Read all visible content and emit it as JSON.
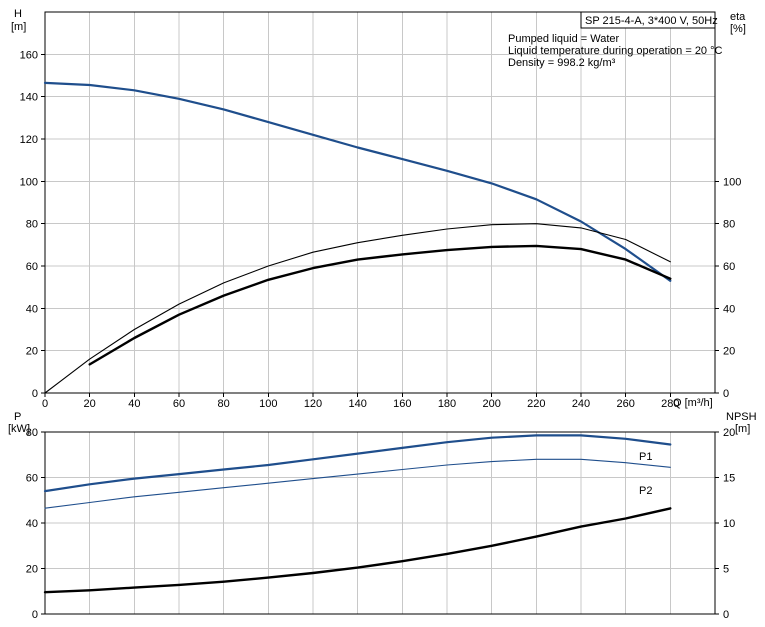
{
  "chart_data": [
    {
      "type": "line",
      "panel": "upper",
      "xlabel": "Q [m³/h]",
      "ylabel_line1": "H",
      "ylabel_line2": "[m]",
      "y2label_line1": "eta",
      "y2label_line2": "[%]",
      "xlim": [
        0,
        300
      ],
      "ylim": [
        0,
        180
      ],
      "y2lim": [
        0,
        180
      ],
      "x_ticks": [
        0,
        20,
        40,
        60,
        80,
        100,
        120,
        140,
        160,
        180,
        200,
        220,
        240,
        260,
        280
      ],
      "y_ticks": [
        0,
        20,
        40,
        60,
        80,
        100,
        120,
        140,
        160
      ],
      "y2_ticks": [
        0,
        20,
        40,
        60,
        80,
        100
      ],
      "grid": true,
      "title_box": "SP 215-4-A, 3*400 V, 50Hz",
      "info_lines": [
        "Pumped liquid = Water",
        "Liquid temperature during operation = 20 °C",
        "Density = 998.2 kg/m³"
      ],
      "series": [
        {
          "color": "#1f4e8c",
          "width": 2.2,
          "axis": "left",
          "x": [
            0,
            20,
            40,
            60,
            80,
            100,
            120,
            140,
            160,
            180,
            200,
            220,
            240,
            260,
            280
          ],
          "y": [
            146.5,
            145.5,
            143,
            139,
            134,
            128,
            122,
            116,
            110.5,
            105,
            99,
            91.5,
            81,
            68,
            53
          ]
        },
        {
          "color": "#000000",
          "width": 1.1,
          "axis": "right",
          "x": [
            0,
            20,
            40,
            60,
            80,
            100,
            120,
            140,
            160,
            180,
            200,
            220,
            240,
            260,
            280
          ],
          "y": [
            0,
            16,
            30,
            42,
            52,
            60,
            66.5,
            71,
            74.5,
            77.5,
            79.5,
            80,
            78,
            72.5,
            62
          ]
        },
        {
          "color": "#000000",
          "width": 2.4,
          "axis": "right",
          "x": [
            20,
            40,
            60,
            80,
            100,
            120,
            140,
            160,
            180,
            200,
            220,
            240,
            260,
            280
          ],
          "y": [
            13.5,
            26,
            37,
            46,
            53.5,
            59,
            63,
            65.5,
            67.5,
            69,
            69.5,
            68,
            63,
            54
          ]
        }
      ]
    },
    {
      "type": "line",
      "panel": "lower",
      "ylabel_line1": "P",
      "ylabel_line2": "[kW]",
      "y2label_line1": "NPSH",
      "y2label_line2": "[m]",
      "xlim": [
        0,
        300
      ],
      "ylim": [
        0,
        80
      ],
      "y2lim": [
        0,
        20
      ],
      "y_ticks": [
        0,
        20,
        40,
        60,
        80
      ],
      "y2_ticks": [
        0,
        5,
        10,
        15,
        20
      ],
      "grid": true,
      "series": [
        {
          "name": "P1",
          "color": "#1f4e8c",
          "width": 2.2,
          "axis": "left",
          "x": [
            0,
            20,
            40,
            60,
            80,
            100,
            120,
            140,
            160,
            180,
            200,
            220,
            240,
            260,
            280
          ],
          "y": [
            54,
            57,
            59.5,
            61.5,
            63.5,
            65.5,
            68,
            70.5,
            73,
            75.5,
            77.5,
            78.5,
            78.5,
            77,
            74.5
          ]
        },
        {
          "name": "P2",
          "color": "#1f4e8c",
          "width": 1.1,
          "axis": "left",
          "x": [
            0,
            20,
            40,
            60,
            80,
            100,
            120,
            140,
            160,
            180,
            200,
            220,
            240,
            260,
            280
          ],
          "y": [
            46.5,
            49,
            51.5,
            53.5,
            55.5,
            57.5,
            59.5,
            61.5,
            63.5,
            65.5,
            67,
            68,
            68,
            66.5,
            64.5
          ]
        },
        {
          "color": "#000000",
          "width": 2.4,
          "axis": "right",
          "x": [
            0,
            20,
            40,
            60,
            80,
            100,
            120,
            140,
            160,
            180,
            200,
            220,
            240,
            260,
            280
          ],
          "y": [
            2.4,
            2.6,
            2.9,
            3.2,
            3.55,
            4.0,
            4.5,
            5.1,
            5.8,
            6.6,
            7.5,
            8.5,
            9.6,
            10.5,
            11.6
          ]
        }
      ]
    }
  ]
}
